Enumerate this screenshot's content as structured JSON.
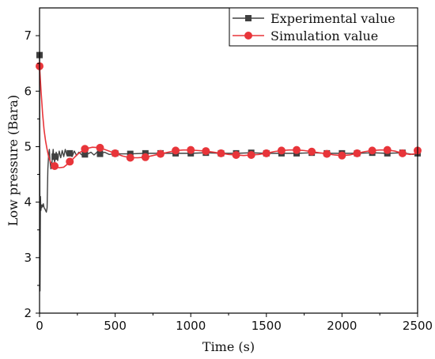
{
  "chart_data": {
    "type": "line",
    "title": "",
    "xlabel": "Time (s)",
    "ylabel": "Low pressure (Bara)",
    "xlim": [
      0,
      2500
    ],
    "ylim": [
      2,
      7.5
    ],
    "x_ticks": [
      0,
      500,
      1000,
      1500,
      2000,
      2500
    ],
    "y_ticks": [
      2,
      3,
      4,
      5,
      6,
      7
    ],
    "grid": false,
    "legend_position": "top-right",
    "series": [
      {
        "name": "Experimental value",
        "color": "#404040",
        "marker": "square",
        "markers": {
          "x": [
            0,
            100,
            200,
            300,
            400,
            500,
            600,
            700,
            800,
            900,
            1000,
            1100,
            1200,
            1300,
            1400,
            1500,
            1600,
            1700,
            1800,
            1900,
            2000,
            2100,
            2200,
            2300,
            2400,
            2500
          ],
          "y": [
            6.65,
            4.82,
            4.88,
            4.86,
            4.87,
            4.88,
            4.87,
            4.88,
            4.88,
            4.88,
            4.88,
            4.89,
            4.88,
            4.88,
            4.89,
            4.88,
            4.88,
            4.88,
            4.89,
            4.88,
            4.88,
            4.88,
            4.89,
            4.88,
            4.89,
            4.88
          ]
        },
        "line": {
          "x": [
            0,
            3,
            6,
            9,
            12,
            15,
            18,
            21,
            25,
            30,
            35,
            40,
            45,
            50,
            55,
            60,
            65,
            70,
            75,
            80,
            85,
            90,
            95,
            100,
            110,
            120,
            130,
            140,
            150,
            160,
            170,
            180,
            190,
            200,
            215,
            230,
            245,
            260,
            280,
            300,
            320,
            340,
            360,
            380,
            400,
            430,
            460,
            500,
            600,
            700,
            800,
            900,
            1000,
            1100,
            1200,
            1300,
            1400,
            1500,
            1600,
            1700,
            1800,
            1900,
            2000,
            2100,
            2200,
            2300,
            2400,
            2470,
            2500
          ],
          "y": [
            6.65,
            2.4,
            4.1,
            3.85,
            3.95,
            3.9,
            3.95,
            3.92,
            3.97,
            3.9,
            3.88,
            3.85,
            3.82,
            3.9,
            4.6,
            4.85,
            4.95,
            4.72,
            4.6,
            4.65,
            4.8,
            4.95,
            4.8,
            4.72,
            4.9,
            4.75,
            4.92,
            4.8,
            4.93,
            4.82,
            4.95,
            4.85,
            4.9,
            4.88,
            4.82,
            4.92,
            4.84,
            4.9,
            4.85,
            4.92,
            4.87,
            4.9,
            4.85,
            4.9,
            4.87,
            4.9,
            4.86,
            4.87,
            4.87,
            4.88,
            4.88,
            4.88,
            4.88,
            4.89,
            4.88,
            4.88,
            4.89,
            4.88,
            4.88,
            4.88,
            4.89,
            4.88,
            4.88,
            4.88,
            4.89,
            4.88,
            4.89,
            4.86,
            4.88
          ]
        }
      },
      {
        "name": "Simulation value",
        "color": "#e8353a",
        "marker": "circle",
        "markers": {
          "x": [
            0,
            100,
            200,
            300,
            400,
            500,
            600,
            700,
            800,
            900,
            1000,
            1100,
            1200,
            1300,
            1400,
            1500,
            1600,
            1700,
            1800,
            1900,
            2000,
            2100,
            2200,
            2300,
            2400,
            2500
          ],
          "y": [
            6.45,
            4.65,
            4.73,
            4.96,
            4.98,
            4.88,
            4.8,
            4.81,
            4.87,
            4.93,
            4.94,
            4.92,
            4.88,
            4.85,
            4.85,
            4.88,
            4.93,
            4.94,
            4.91,
            4.87,
            4.84,
            4.88,
            4.93,
            4.94,
            4.88,
            4.93
          ]
        },
        "line": {
          "x": [
            0,
            10,
            20,
            30,
            40,
            50,
            60,
            70,
            80,
            90,
            100,
            130,
            160,
            200,
            250,
            300,
            350,
            400,
            450,
            500,
            550,
            600,
            650,
            700,
            750,
            800,
            850,
            900,
            950,
            1000,
            1050,
            1100,
            1150,
            1200,
            1250,
            1300,
            1350,
            1400,
            1450,
            1500,
            1550,
            1600,
            1650,
            1700,
            1750,
            1800,
            1850,
            1900,
            1950,
            2000,
            2050,
            2100,
            2150,
            2200,
            2250,
            2300,
            2350,
            2400,
            2450,
            2480,
            2500
          ],
          "y": [
            6.45,
            6.0,
            5.6,
            5.3,
            5.1,
            4.95,
            4.82,
            4.74,
            4.68,
            4.65,
            4.64,
            4.62,
            4.63,
            4.72,
            4.86,
            4.96,
            4.99,
            4.98,
            4.93,
            4.88,
            4.83,
            4.8,
            4.8,
            4.81,
            4.84,
            4.87,
            4.9,
            4.93,
            4.94,
            4.94,
            4.93,
            4.92,
            4.9,
            4.88,
            4.86,
            4.85,
            4.84,
            4.85,
            4.86,
            4.88,
            4.91,
            4.93,
            4.94,
            4.94,
            4.93,
            4.91,
            4.89,
            4.87,
            4.85,
            4.84,
            4.85,
            4.88,
            4.91,
            4.93,
            4.94,
            4.94,
            4.92,
            4.88,
            4.86,
            4.87,
            4.93
          ]
        }
      }
    ]
  }
}
